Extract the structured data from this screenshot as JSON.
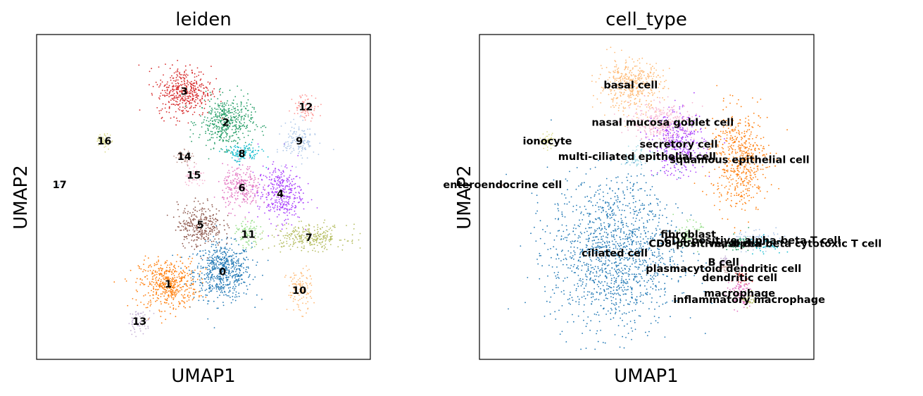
{
  "chart_data": [
    {
      "type": "scatter",
      "title": "leiden",
      "xlabel": "UMAP1",
      "ylabel": "UMAP2",
      "grid": false,
      "legend": "on data",
      "clusters": [
        {
          "label": "0",
          "color": "#1f77b4",
          "x": 0.56,
          "y": 0.26,
          "sx": 0.045,
          "sy": 0.045,
          "n": 600
        },
        {
          "label": "1",
          "color": "#ff7f0e",
          "x": 0.39,
          "y": 0.22,
          "sx": 0.045,
          "sy": 0.04,
          "n": 500
        },
        {
          "label": "2",
          "color": "#279e68",
          "x": 0.57,
          "y": 0.74,
          "sx": 0.042,
          "sy": 0.04,
          "n": 450
        },
        {
          "label": "3",
          "color": "#d62728",
          "x": 0.44,
          "y": 0.84,
          "sx": 0.042,
          "sy": 0.04,
          "n": 420
        },
        {
          "label": "4",
          "color": "#aa40fc",
          "x": 0.74,
          "y": 0.51,
          "sx": 0.035,
          "sy": 0.045,
          "n": 350
        },
        {
          "label": "5",
          "color": "#8c564b",
          "x": 0.49,
          "y": 0.41,
          "sx": 0.035,
          "sy": 0.035,
          "n": 300
        },
        {
          "label": "6",
          "color": "#e377c2",
          "x": 0.62,
          "y": 0.53,
          "sx": 0.03,
          "sy": 0.035,
          "n": 260
        },
        {
          "label": "7",
          "color": "#b5bd61",
          "x": 0.83,
          "y": 0.37,
          "sx": 0.06,
          "sy": 0.02,
          "n": 280
        },
        {
          "label": "8",
          "color": "#17becf",
          "x": 0.62,
          "y": 0.64,
          "sx": 0.03,
          "sy": 0.015,
          "n": 120
        },
        {
          "label": "9",
          "color": "#aec7e8",
          "x": 0.8,
          "y": 0.68,
          "sx": 0.025,
          "sy": 0.03,
          "n": 140
        },
        {
          "label": "10",
          "color": "#ffbb78",
          "x": 0.8,
          "y": 0.2,
          "sx": 0.02,
          "sy": 0.035,
          "n": 120
        },
        {
          "label": "11",
          "color": "#98df8a",
          "x": 0.64,
          "y": 0.38,
          "sx": 0.018,
          "sy": 0.02,
          "n": 90
        },
        {
          "label": "12",
          "color": "#ff9896",
          "x": 0.82,
          "y": 0.79,
          "sx": 0.02,
          "sy": 0.02,
          "n": 80
        },
        {
          "label": "13",
          "color": "#c5b0d5",
          "x": 0.3,
          "y": 0.1,
          "sx": 0.018,
          "sy": 0.018,
          "n": 70
        },
        {
          "label": "14",
          "color": "#c49c94",
          "x": 0.44,
          "y": 0.63,
          "sx": 0.015,
          "sy": 0.012,
          "n": 40
        },
        {
          "label": "15",
          "color": "#f7b6d2",
          "x": 0.47,
          "y": 0.57,
          "sx": 0.015,
          "sy": 0.02,
          "n": 50
        },
        {
          "label": "16",
          "color": "#dbdb8d",
          "x": 0.19,
          "y": 0.68,
          "sx": 0.012,
          "sy": 0.012,
          "n": 50
        },
        {
          "label": "17",
          "color": "#aec7e8",
          "x": 0.05,
          "y": 0.54,
          "sx": 0.003,
          "sy": 0.003,
          "n": 3
        }
      ]
    },
    {
      "type": "scatter",
      "title": "cell_type",
      "xlabel": "UMAP1",
      "ylabel": "UMAP2",
      "grid": false,
      "legend": "on data",
      "clusters": [
        {
          "label": "basal cell",
          "color": "#ffbb78",
          "x": 0.45,
          "y": 0.86,
          "sx": 0.05,
          "sy": 0.04,
          "n": 420
        },
        {
          "label": "nasal mucosa goblet cell",
          "color": "#f7b6d2",
          "x": 0.55,
          "y": 0.74,
          "sx": 0.05,
          "sy": 0.03,
          "n": 300
        },
        {
          "label": "ionocyte",
          "color": "#dbdb8d",
          "x": 0.19,
          "y": 0.68,
          "sx": 0.012,
          "sy": 0.012,
          "n": 50
        },
        {
          "label": "secretory cell",
          "color": "#aa40fc",
          "x": 0.6,
          "y": 0.67,
          "sx": 0.04,
          "sy": 0.05,
          "n": 350
        },
        {
          "label": "multi-ciliated epithelial cell",
          "color": "#9edae5",
          "x": 0.47,
          "y": 0.63,
          "sx": 0.025,
          "sy": 0.02,
          "n": 60
        },
        {
          "label": "enteroendocrine cell",
          "color": "#8c564b",
          "x": 0.05,
          "y": 0.54,
          "sx": 0.003,
          "sy": 0.003,
          "n": 3
        },
        {
          "label": "squamous epithelial cell",
          "color": "#ff7f0e",
          "x": 0.79,
          "y": 0.62,
          "sx": 0.045,
          "sy": 0.08,
          "n": 550
        },
        {
          "label": "fibroblast",
          "color": "#98df8a",
          "x": 0.63,
          "y": 0.38,
          "sx": 0.02,
          "sy": 0.02,
          "n": 80
        },
        {
          "label": "CD4-positive, alpha-beta T cell",
          "color": "#aec7e8",
          "x": 0.83,
          "y": 0.36,
          "sx": 0.05,
          "sy": 0.015,
          "n": 120
        },
        {
          "label": "mast cell",
          "color": "#279e68",
          "x": 0.78,
          "y": 0.35,
          "sx": 0.02,
          "sy": 0.012,
          "n": 60
        },
        {
          "label": "CD8-positive, alpha-beta cytotoxic T cell",
          "color": "#17becf",
          "x": 0.87,
          "y": 0.35,
          "sx": 0.03,
          "sy": 0.012,
          "n": 60
        },
        {
          "label": "B cell",
          "color": "#c5b0d5",
          "x": 0.74,
          "y": 0.29,
          "sx": 0.01,
          "sy": 0.01,
          "n": 25
        },
        {
          "label": "ciliated cell",
          "color": "#1f77b4",
          "x": 0.4,
          "y": 0.32,
          "sx": 0.1,
          "sy": 0.12,
          "n": 1400
        },
        {
          "label": "plasmacytoid dendritic cell",
          "color": "#c49c94",
          "x": 0.74,
          "y": 0.27,
          "sx": 0.012,
          "sy": 0.012,
          "n": 25
        },
        {
          "label": "dendritic cell",
          "color": "#d62728",
          "x": 0.79,
          "y": 0.24,
          "sx": 0.012,
          "sy": 0.012,
          "n": 25
        },
        {
          "label": "macrophage",
          "color": "#e377c2",
          "x": 0.79,
          "y": 0.19,
          "sx": 0.02,
          "sy": 0.025,
          "n": 100
        },
        {
          "label": "inflammatory macrophage",
          "color": "#b5bd61",
          "x": 0.82,
          "y": 0.17,
          "sx": 0.012,
          "sy": 0.012,
          "n": 30
        }
      ]
    }
  ]
}
